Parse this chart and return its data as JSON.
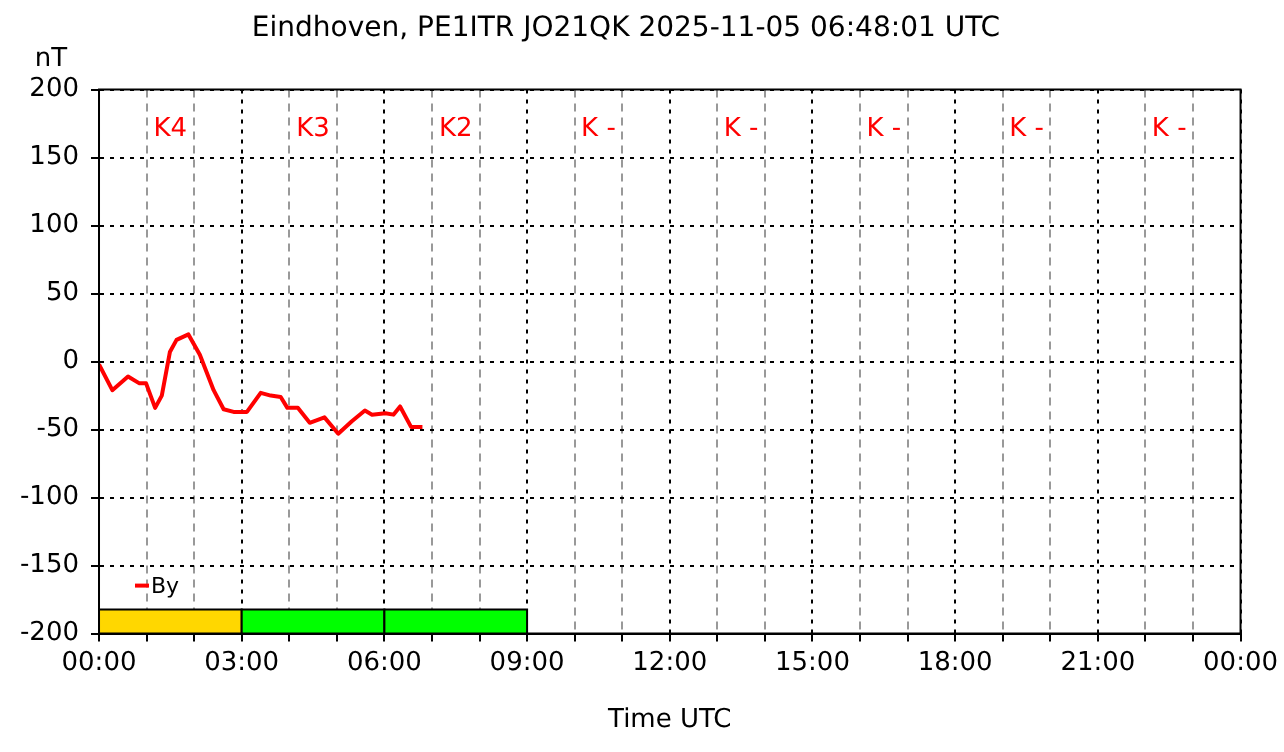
{
  "chart_data": {
    "type": "line",
    "title": "Eindhoven, PE1ITR JO21QK 2025-11-05 06:48:01 UTC",
    "xlabel": "Time UTC",
    "ylabel": "nT",
    "series": [
      {
        "name": "By",
        "color": "#ff0000",
        "x": [
          0,
          0.28,
          0.61,
          0.85,
          0.99,
          1.18,
          1.32,
          1.49,
          1.63,
          1.88,
          2.12,
          2.41,
          2.62,
          2.83,
          3.11,
          3.4,
          3.61,
          3.82,
          3.96,
          4.18,
          4.43,
          4.74,
          5.03,
          5.31,
          5.59,
          5.74,
          6.02,
          6.19,
          6.33,
          6.56,
          6.8
        ],
        "values": [
          -2,
          -21,
          -11,
          -16,
          -16,
          -34,
          -25,
          7,
          16,
          20,
          5,
          -21,
          -35,
          -37,
          -37,
          -23,
          -25,
          -26,
          -34,
          -34,
          -45,
          -41,
          -53,
          -44,
          -36,
          -39,
          -38,
          -39,
          -33,
          -48,
          -48
        ]
      }
    ],
    "xlim": [
      0,
      24
    ],
    "xticks": [
      {
        "value": 0,
        "label": "00:00"
      },
      {
        "value": 1,
        "label": null
      },
      {
        "value": 2,
        "label": null
      },
      {
        "value": 3,
        "label": "03:00"
      },
      {
        "value": 4,
        "label": null
      },
      {
        "value": 5,
        "label": null
      },
      {
        "value": 6,
        "label": "06:00"
      },
      {
        "value": 7,
        "label": null
      },
      {
        "value": 8,
        "label": null
      },
      {
        "value": 9,
        "label": "09:00"
      },
      {
        "value": 10,
        "label": null
      },
      {
        "value": 11,
        "label": null
      },
      {
        "value": 12,
        "label": "12:00"
      },
      {
        "value": 13,
        "label": null
      },
      {
        "value": 14,
        "label": null
      },
      {
        "value": 15,
        "label": "15:00"
      },
      {
        "value": 16,
        "label": null
      },
      {
        "value": 17,
        "label": null
      },
      {
        "value": 18,
        "label": "18:00"
      },
      {
        "value": 19,
        "label": null
      },
      {
        "value": 20,
        "label": null
      },
      {
        "value": 21,
        "label": "21:00"
      },
      {
        "value": 22,
        "label": null
      },
      {
        "value": 23,
        "label": null
      },
      {
        "value": 24,
        "label": "00:00"
      }
    ],
    "ylim": [
      -200,
      200
    ],
    "yticks": [
      -200,
      -150,
      -100,
      -50,
      0,
      50,
      100,
      150,
      200
    ],
    "grid": true,
    "legend": "bottom left",
    "marker": "none",
    "line_style": "solid",
    "bands": [
      {
        "axis": "x",
        "from": 0,
        "to": 3,
        "color": "#ffd700",
        "label": null
      },
      {
        "axis": "x",
        "from": 3,
        "to": 6,
        "color": "#00ff00",
        "label": null
      },
      {
        "axis": "x",
        "from": 6,
        "to": 9,
        "color": "#00ff00",
        "label": null
      }
    ],
    "annotations": [
      "K4",
      "K3",
      "K2",
      "K -",
      "K -",
      "K -",
      "K -",
      "K -"
    ]
  }
}
